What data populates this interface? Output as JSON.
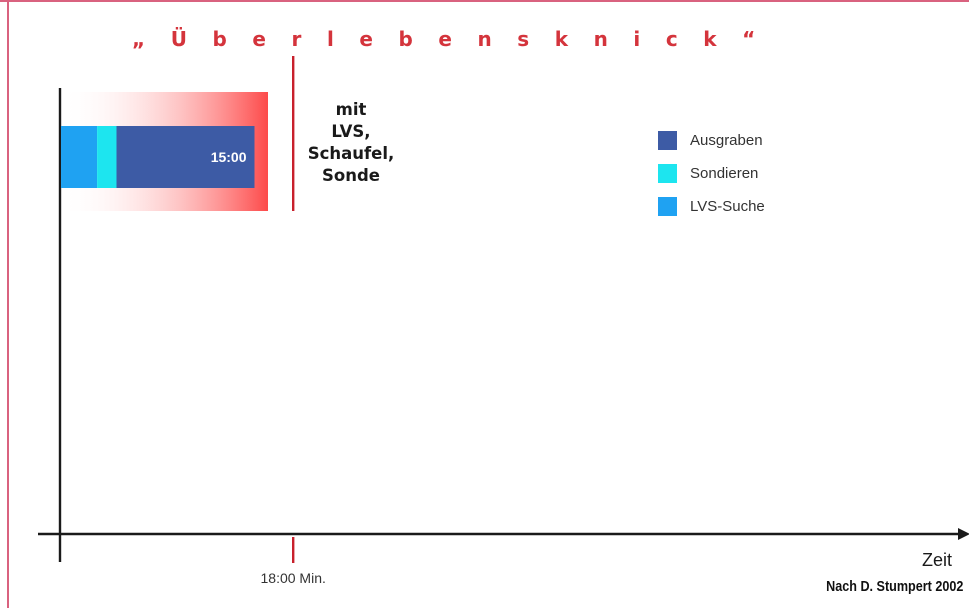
{
  "colors": {
    "ausgraben": "#3d5ba5",
    "sondieren": "#1de5ef",
    "lvs_suche": "#1fa2f2",
    "threshold": "#c8202c",
    "gradient_end": "#fd4a4a",
    "frame": "#d9627f",
    "axis": "#1a1a1a"
  },
  "chart_data": {
    "type": "bar",
    "orientation": "horizontal",
    "stacked": true,
    "title": "„ Ü b e r l e b e n s k n i c k “",
    "xlabel": "Zeit",
    "ylabel": "",
    "xlim_minutes": [
      0,
      60
    ],
    "grid": false,
    "legend_position": "right",
    "categories": [
      "mit LVS, Schaufel, Sonde"
    ],
    "category_lines": [
      "mit",
      "LVS,",
      "Schaufel,",
      "Sonde"
    ],
    "series": [
      {
        "name": "LVS-Suche",
        "values": [
          2.8
        ],
        "color": "#1fa2f2"
      },
      {
        "name": "Sondieren",
        "values": [
          1.5
        ],
        "color": "#1de5ef"
      },
      {
        "name": "Ausgraben",
        "values": [
          10.7
        ],
        "color": "#3d5ba5"
      }
    ],
    "total_label": "15:00",
    "threshold": {
      "value_minutes": 18,
      "label": "18:00 Min."
    },
    "legend": [
      "Ausgraben",
      "Sondieren",
      "LVS-Suche"
    ],
    "source": "Nach D. Stumpert 2002"
  }
}
